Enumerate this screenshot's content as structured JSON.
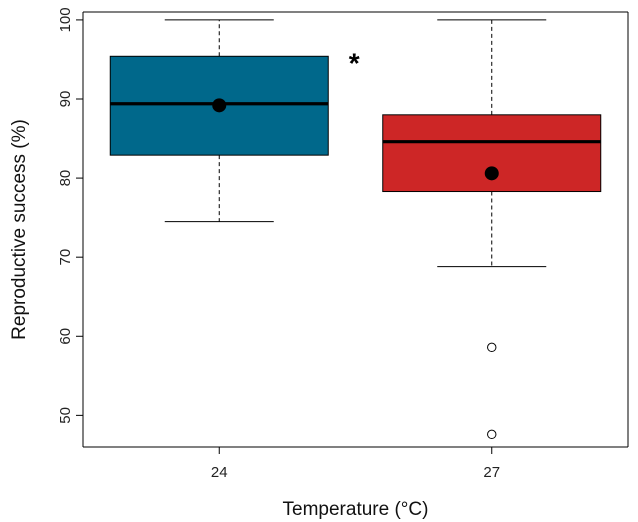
{
  "chart_data": {
    "type": "box",
    "xlabel": "Temperature (°C)",
    "ylabel": "Reproductive success (%)",
    "ylim": [
      46,
      101
    ],
    "yticks": [
      50,
      60,
      70,
      80,
      90,
      100
    ],
    "categories": [
      "24",
      "27"
    ],
    "groups": [
      {
        "category": "24",
        "color": "#00688B",
        "whisker_low": 74.5,
        "q1": 82.9,
        "median": 89.4,
        "q3": 95.4,
        "whisker_high": 100,
        "mean": 89.2,
        "outliers": [],
        "annotation": "*"
      },
      {
        "category": "27",
        "color": "#CD2626",
        "whisker_low": 68.8,
        "q1": 78.3,
        "median": 84.6,
        "q3": 88.0,
        "whisker_high": 100,
        "mean": 80.6,
        "outliers": [
          58.6,
          47.6
        ],
        "annotation": ""
      }
    ],
    "grid": false,
    "legend": "none"
  }
}
